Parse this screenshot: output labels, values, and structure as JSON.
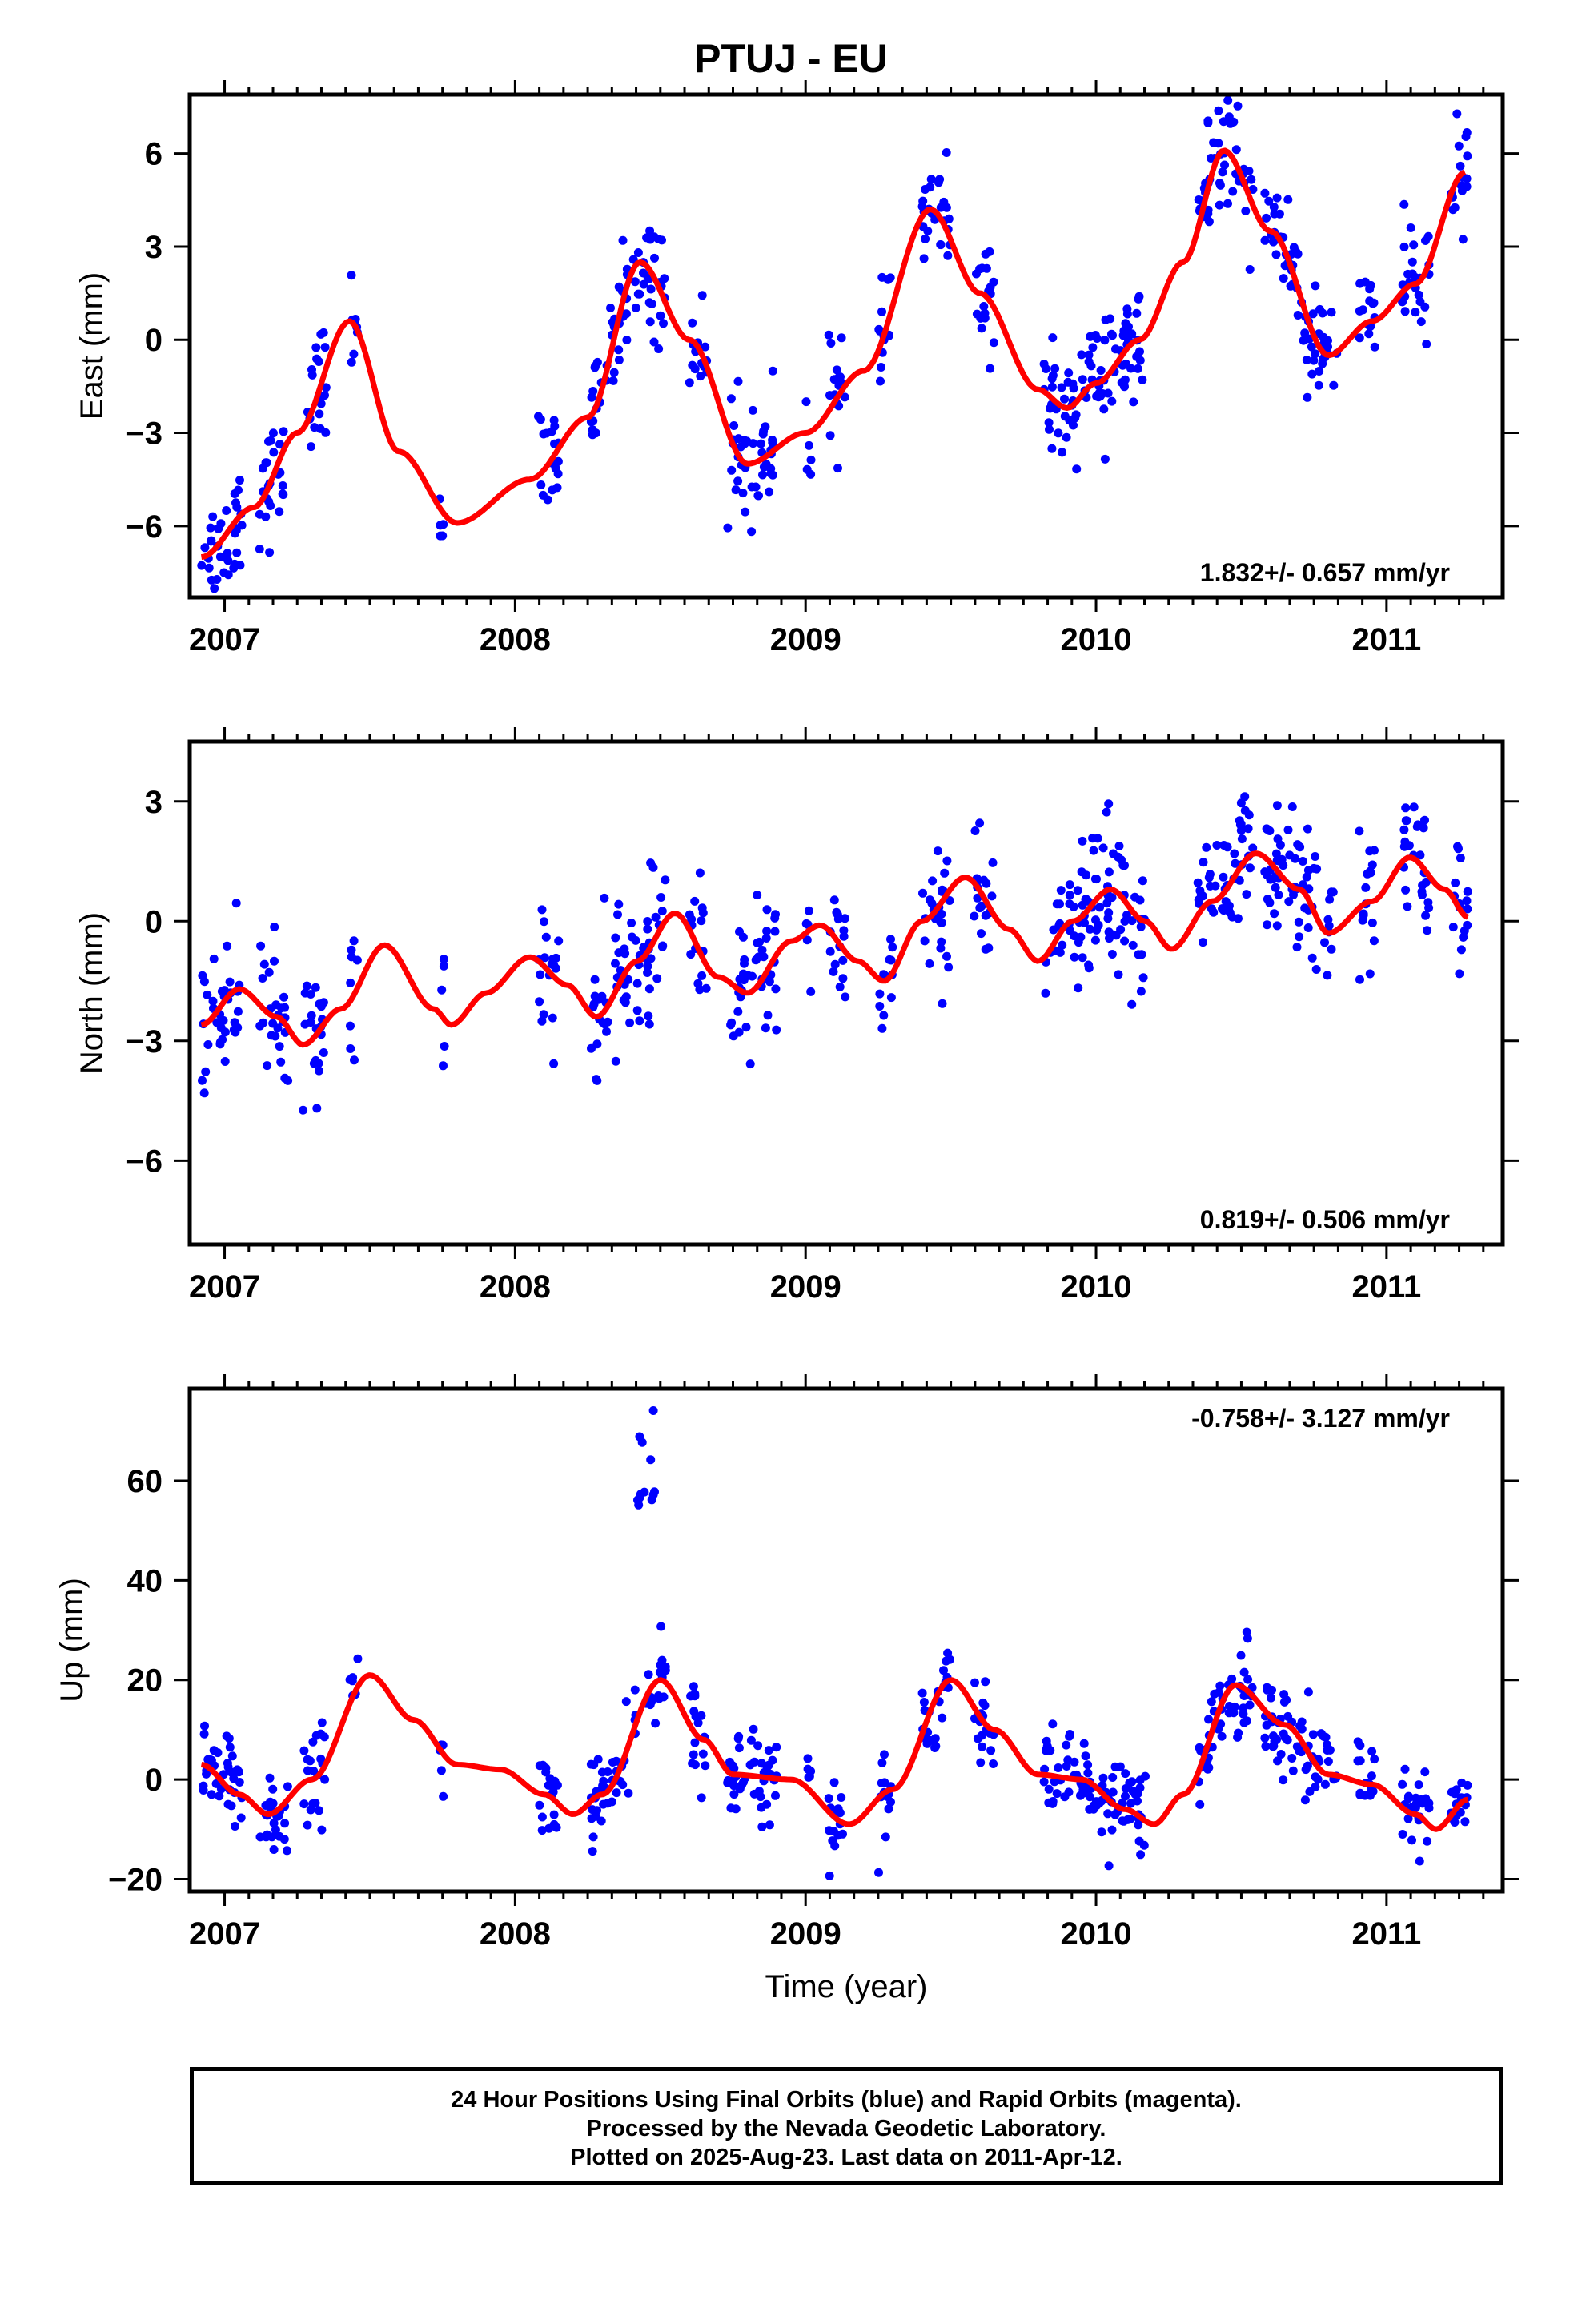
{
  "title": "PTUJ - EU",
  "chart_data": [
    {
      "type": "scatter",
      "name": "east",
      "ylabel": "East (mm)",
      "xlabel": "",
      "rate_label": "1.832+/- 0.657 mm/yr",
      "rate_position": "bottom-right",
      "xlim": [
        2006.88,
        2011.4
      ],
      "ylim": [
        -8.3,
        7.9
      ],
      "xticks": [
        2007,
        2008,
        2009,
        2010,
        2011
      ],
      "yticks": [
        -6,
        -3,
        0,
        3,
        6
      ],
      "ytick_labels": [
        "−6",
        "−3",
        "0",
        "3",
        "6"
      ],
      "points_color": "#0000ff",
      "model_color": "#ff0000",
      "seasonal_amplitude": 3.2,
      "seasonal_phase_year": 2007.18,
      "semiannual_amplitude": 0.7,
      "noise": 0.9,
      "model": [
        [
          2006.92,
          -7.0
        ],
        [
          2007.1,
          -5.4
        ],
        [
          2007.25,
          -3.0
        ],
        [
          2007.43,
          0.6
        ],
        [
          2007.6,
          -3.6
        ],
        [
          2007.8,
          -5.9
        ],
        [
          2008.05,
          -4.5
        ],
        [
          2008.25,
          -2.5
        ],
        [
          2008.43,
          2.5
        ],
        [
          2008.6,
          0.0
        ],
        [
          2008.8,
          -4.0
        ],
        [
          2009.0,
          -3.0
        ],
        [
          2009.2,
          -1.0
        ],
        [
          2009.43,
          4.2
        ],
        [
          2009.6,
          1.5
        ],
        [
          2009.8,
          -1.6
        ],
        [
          2009.9,
          -2.2
        ],
        [
          2010.0,
          -1.4
        ],
        [
          2010.15,
          0.0
        ],
        [
          2010.3,
          2.5
        ],
        [
          2010.44,
          6.1
        ],
        [
          2010.6,
          3.5
        ],
        [
          2010.8,
          -0.5
        ],
        [
          2010.95,
          0.6
        ],
        [
          2011.1,
          1.8
        ],
        [
          2011.27,
          5.4
        ]
      ],
      "data_segments": [
        [
          2006.92,
          2007.06
        ],
        [
          2007.12,
          2007.22
        ],
        [
          2007.27,
          2007.35
        ],
        [
          2007.43,
          2007.46
        ],
        [
          2007.74,
          2007.76
        ],
        [
          2008.08,
          2008.15
        ],
        [
          2008.26,
          2008.52
        ],
        [
          2008.6,
          2008.66
        ],
        [
          2008.73,
          2008.9
        ],
        [
          2009.0,
          2009.02
        ],
        [
          2009.08,
          2009.14
        ],
        [
          2009.25,
          2009.3
        ],
        [
          2009.4,
          2009.5
        ],
        [
          2009.58,
          2009.65
        ],
        [
          2009.82,
          2010.17
        ],
        [
          2010.35,
          2010.54
        ],
        [
          2010.58,
          2010.83
        ],
        [
          2010.9,
          2010.96
        ],
        [
          2011.05,
          2011.15
        ],
        [
          2011.22,
          2011.28
        ]
      ]
    },
    {
      "type": "scatter",
      "name": "north",
      "ylabel": "North (mm)",
      "xlabel": "",
      "rate_label": "0.819+/- 0.506 mm/yr",
      "rate_position": "bottom-right",
      "xlim": [
        2006.88,
        2011.4
      ],
      "ylim": [
        -8.1,
        4.5
      ],
      "xticks": [
        2007,
        2008,
        2009,
        2010,
        2011
      ],
      "yticks": [
        -6,
        -3,
        0,
        3
      ],
      "ytick_labels": [
        "−6",
        "−3",
        "0",
        "3"
      ],
      "points_color": "#0000ff",
      "model_color": "#ff0000",
      "seasonal_amplitude": 1.0,
      "seasonal_phase_year": 2007.3,
      "semiannual_amplitude": 0.3,
      "noise": 0.9,
      "model": [
        [
          2006.92,
          -2.6
        ],
        [
          2007.05,
          -1.7
        ],
        [
          2007.18,
          -2.4
        ],
        [
          2007.27,
          -3.1
        ],
        [
          2007.4,
          -2.2
        ],
        [
          2007.55,
          -0.6
        ],
        [
          2007.72,
          -2.2
        ],
        [
          2007.78,
          -2.6
        ],
        [
          2007.9,
          -1.8
        ],
        [
          2008.05,
          -0.9
        ],
        [
          2008.18,
          -1.6
        ],
        [
          2008.28,
          -2.4
        ],
        [
          2008.42,
          -1.0
        ],
        [
          2008.55,
          0.2
        ],
        [
          2008.7,
          -1.4
        ],
        [
          2008.8,
          -1.8
        ],
        [
          2008.95,
          -0.5
        ],
        [
          2009.05,
          -0.1
        ],
        [
          2009.18,
          -1.0
        ],
        [
          2009.27,
          -1.5
        ],
        [
          2009.4,
          0.0
        ],
        [
          2009.55,
          1.1
        ],
        [
          2009.7,
          -0.2
        ],
        [
          2009.8,
          -1.0
        ],
        [
          2009.92,
          0.0
        ],
        [
          2010.05,
          0.8
        ],
        [
          2010.17,
          0.0
        ],
        [
          2010.26,
          -0.7
        ],
        [
          2010.4,
          0.5
        ],
        [
          2010.55,
          1.7
        ],
        [
          2010.7,
          0.8
        ],
        [
          2010.8,
          -0.3
        ],
        [
          2010.95,
          0.5
        ],
        [
          2011.08,
          1.6
        ],
        [
          2011.2,
          0.8
        ],
        [
          2011.28,
          0.1
        ]
      ],
      "data_segments": [
        [
          2006.92,
          2007.06
        ],
        [
          2007.12,
          2007.22
        ],
        [
          2007.27,
          2007.35
        ],
        [
          2007.43,
          2007.46
        ],
        [
          2007.74,
          2007.76
        ],
        [
          2008.08,
          2008.15
        ],
        [
          2008.26,
          2008.52
        ],
        [
          2008.6,
          2008.66
        ],
        [
          2008.73,
          2008.9
        ],
        [
          2009.0,
          2009.02
        ],
        [
          2009.08,
          2009.14
        ],
        [
          2009.25,
          2009.3
        ],
        [
          2009.4,
          2009.5
        ],
        [
          2009.58,
          2009.65
        ],
        [
          2009.82,
          2010.17
        ],
        [
          2010.35,
          2010.54
        ],
        [
          2010.58,
          2010.83
        ],
        [
          2010.9,
          2010.96
        ],
        [
          2011.05,
          2011.15
        ],
        [
          2011.22,
          2011.28
        ]
      ]
    },
    {
      "type": "scatter",
      "name": "up",
      "ylabel": "Up (mm)",
      "xlabel": "Time (year)",
      "rate_label": "-0.758+/- 3.127 mm/yr",
      "rate_position": "top-right",
      "xlim": [
        2006.88,
        2011.4
      ],
      "ylim": [
        -22.5,
        78.5
      ],
      "xticks": [
        2007,
        2008,
        2009,
        2010,
        2011
      ],
      "yticks": [
        -20,
        0,
        20,
        40,
        60
      ],
      "ytick_labels": [
        "−20",
        "0",
        "20",
        "40",
        "60"
      ],
      "points_color": "#0000ff",
      "model_color": "#ff0000",
      "seasonal_amplitude": 10,
      "seasonal_phase_year": 2007.25,
      "semiannual_amplitude": 3,
      "noise": 4.5,
      "outlier_cluster": {
        "x_range": [
          2008.42,
          2008.5
        ],
        "y_range": [
          52,
          76
        ]
      },
      "model": [
        [
          2006.92,
          3
        ],
        [
          2007.05,
          -3
        ],
        [
          2007.15,
          -7
        ],
        [
          2007.3,
          0
        ],
        [
          2007.5,
          21
        ],
        [
          2007.65,
          12
        ],
        [
          2007.8,
          3
        ],
        [
          2007.95,
          2
        ],
        [
          2008.1,
          -3
        ],
        [
          2008.2,
          -7
        ],
        [
          2008.3,
          -3
        ],
        [
          2008.5,
          20
        ],
        [
          2008.65,
          8
        ],
        [
          2008.75,
          1
        ],
        [
          2008.95,
          0
        ],
        [
          2009.15,
          -9
        ],
        [
          2009.3,
          -2
        ],
        [
          2009.5,
          20
        ],
        [
          2009.65,
          10
        ],
        [
          2009.8,
          1
        ],
        [
          2009.95,
          0
        ],
        [
          2010.1,
          -6
        ],
        [
          2010.2,
          -9
        ],
        [
          2010.3,
          -3
        ],
        [
          2010.48,
          19
        ],
        [
          2010.65,
          11
        ],
        [
          2010.8,
          1
        ],
        [
          2010.95,
          -1
        ],
        [
          2011.1,
          -7
        ],
        [
          2011.17,
          -10
        ],
        [
          2011.28,
          -4
        ]
      ],
      "data_segments": [
        [
          2006.92,
          2007.06
        ],
        [
          2007.12,
          2007.22
        ],
        [
          2007.27,
          2007.35
        ],
        [
          2007.43,
          2007.46
        ],
        [
          2007.74,
          2007.76
        ],
        [
          2008.08,
          2008.15
        ],
        [
          2008.26,
          2008.52
        ],
        [
          2008.6,
          2008.66
        ],
        [
          2008.73,
          2008.9
        ],
        [
          2009.0,
          2009.02
        ],
        [
          2009.08,
          2009.14
        ],
        [
          2009.25,
          2009.3
        ],
        [
          2009.4,
          2009.5
        ],
        [
          2009.58,
          2009.65
        ],
        [
          2009.82,
          2010.17
        ],
        [
          2010.35,
          2010.54
        ],
        [
          2010.58,
          2010.83
        ],
        [
          2010.9,
          2010.96
        ],
        [
          2011.05,
          2011.15
        ],
        [
          2011.22,
          2011.28
        ]
      ]
    }
  ],
  "footer": {
    "line1": "24 Hour Positions Using Final Orbits (blue) and Rapid Orbits (magenta).",
    "line2": "Processed by the Nevada Geodetic Laboratory.",
    "line3": "Plotted on 2025-Aug-23. Last data on 2011-Apr-12."
  }
}
